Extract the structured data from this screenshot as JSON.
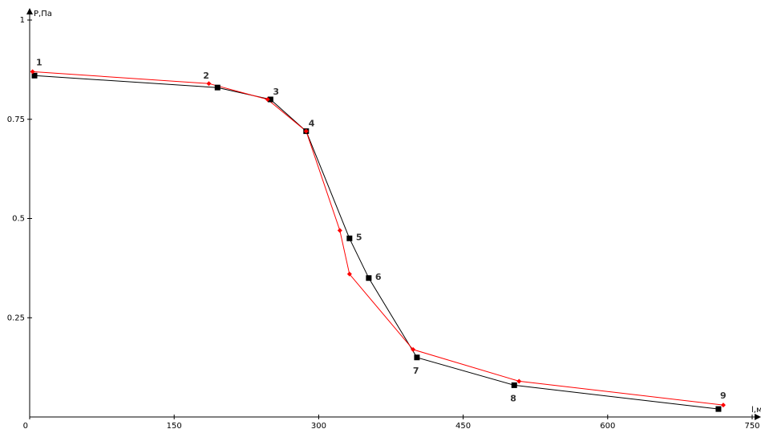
{
  "chart_data": {
    "type": "line",
    "title": "",
    "xlabel": "l,м",
    "ylabel": "P,Па",
    "xlim": [
      0,
      750
    ],
    "ylim": [
      0,
      1
    ],
    "x_ticks": [
      0,
      150,
      300,
      450,
      600,
      750
    ],
    "y_ticks": [
      0.25,
      0.5,
      0.75,
      1
    ],
    "x_tick_labels": [
      "0",
      "150",
      "300",
      "450",
      "600",
      "750"
    ],
    "y_tick_labels": [
      "0.25",
      "0.5",
      "0.75",
      "1"
    ],
    "grid": false,
    "legend": "none",
    "series": [
      {
        "color": "#000000",
        "marker": "square",
        "points": [
          {
            "x": 5,
            "y": 0.86
          },
          {
            "x": 195,
            "y": 0.83
          },
          {
            "x": 250,
            "y": 0.8
          },
          {
            "x": 287,
            "y": 0.72
          },
          {
            "x": 332,
            "y": 0.45
          },
          {
            "x": 352,
            "y": 0.35
          },
          {
            "x": 402,
            "y": 0.15
          },
          {
            "x": 503,
            "y": 0.08
          },
          {
            "x": 715,
            "y": 0.02
          }
        ]
      },
      {
        "color": "#ff0000",
        "marker": "diamond",
        "points": [
          {
            "x": 3,
            "y": 0.87
          },
          {
            "x": 186,
            "y": 0.84
          },
          {
            "x": 247,
            "y": 0.8
          },
          {
            "x": 287,
            "y": 0.72
          },
          {
            "x": 322,
            "y": 0.47
          },
          {
            "x": 332,
            "y": 0.36
          },
          {
            "x": 398,
            "y": 0.17
          },
          {
            "x": 508,
            "y": 0.09
          },
          {
            "x": 720,
            "y": 0.03
          }
        ]
      }
    ],
    "point_labels": [
      {
        "text": "1",
        "x": 5,
        "y": 0.86,
        "pos": "above"
      },
      {
        "text": "2",
        "x": 195,
        "y": 0.83,
        "pos": "above-left"
      },
      {
        "text": "3",
        "x": 250,
        "y": 0.8,
        "pos": "above-right"
      },
      {
        "text": "4",
        "x": 287,
        "y": 0.72,
        "pos": "above-right"
      },
      {
        "text": "5",
        "x": 332,
        "y": 0.45,
        "pos": "right"
      },
      {
        "text": "6",
        "x": 352,
        "y": 0.35,
        "pos": "right"
      },
      {
        "text": "7",
        "x": 402,
        "y": 0.15,
        "pos": "below"
      },
      {
        "text": "8",
        "x": 503,
        "y": 0.08,
        "pos": "below"
      },
      {
        "text": "9",
        "x": 715,
        "y": 0.02,
        "pos": "above"
      }
    ]
  }
}
